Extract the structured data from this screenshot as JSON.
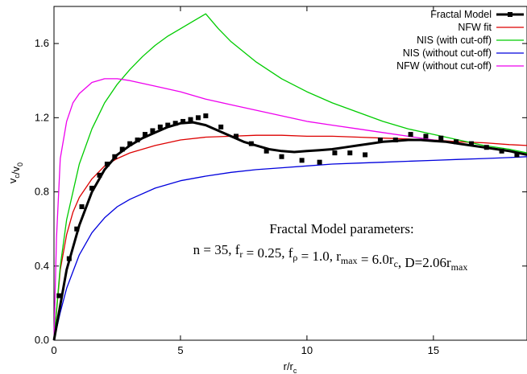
{
  "chart_data": {
    "type": "line",
    "xlabel": {
      "main": "r/r",
      "sub": "c"
    },
    "ylabel": {
      "parts": [
        [
          "v",
          ""
        ],
        [
          "c",
          "sub"
        ],
        [
          "/v",
          ""
        ],
        [
          "0",
          "sub"
        ]
      ]
    },
    "xlim": [
      0,
      18.7
    ],
    "ylim": [
      0,
      1.8
    ],
    "x_ticks": [
      0,
      5,
      10,
      15
    ],
    "x_tick_labels": [
      "0",
      "5",
      "10",
      "15"
    ],
    "y_ticks": [
      0,
      0.4,
      0.8,
      1.2,
      1.6
    ],
    "y_tick_labels": [
      "0.0",
      "0.4",
      "0.8",
      "1.2",
      "1.6"
    ],
    "grid": false,
    "legend_position": "top-right",
    "series": [
      {
        "name": "Fractal Model",
        "color": "#000000",
        "style": "line-with-square-markers",
        "x": [
          0,
          0.5,
          1,
          1.5,
          2,
          2.5,
          3,
          3.5,
          4,
          4.5,
          5,
          5.5,
          6,
          6.5,
          7,
          7.5,
          8,
          8.5,
          9,
          9.5,
          10,
          10.5,
          11,
          11.5,
          12,
          12.5,
          13,
          13.5,
          14,
          14.5,
          15,
          15.5,
          16,
          16.5,
          17,
          17.5,
          18,
          18.7
        ],
        "y": [
          0,
          0.38,
          0.62,
          0.8,
          0.92,
          1.0,
          1.05,
          1.09,
          1.12,
          1.15,
          1.17,
          1.175,
          1.16,
          1.13,
          1.1,
          1.07,
          1.05,
          1.03,
          1.02,
          1.015,
          1.02,
          1.025,
          1.03,
          1.04,
          1.05,
          1.06,
          1.07,
          1.075,
          1.08,
          1.08,
          1.075,
          1.07,
          1.06,
          1.05,
          1.04,
          1.03,
          1.02,
          1.0
        ]
      },
      {
        "name": "NFW fit",
        "color": "#dd0000",
        "x": [
          0,
          0.25,
          0.5,
          0.75,
          1,
          1.5,
          2,
          2.5,
          3,
          4,
          5,
          6,
          7,
          8,
          9,
          10,
          11,
          12,
          13,
          14,
          15,
          16,
          17,
          18,
          18.7
        ],
        "y": [
          0,
          0.38,
          0.57,
          0.69,
          0.77,
          0.87,
          0.94,
          0.98,
          1.01,
          1.05,
          1.08,
          1.095,
          1.1,
          1.105,
          1.105,
          1.1,
          1.1,
          1.095,
          1.09,
          1.085,
          1.08,
          1.07,
          1.065,
          1.055,
          1.05
        ]
      },
      {
        "name": "NIS (with cut-off)",
        "color": "#00cc00",
        "x": [
          0,
          0.25,
          0.5,
          1,
          1.5,
          2,
          2.5,
          3,
          3.5,
          4,
          4.5,
          5,
          5.5,
          6,
          6.5,
          7,
          8,
          9,
          10,
          11,
          12,
          13,
          14,
          15,
          16,
          17,
          18,
          18.7
        ],
        "y": [
          0,
          0.4,
          0.65,
          0.95,
          1.14,
          1.28,
          1.38,
          1.46,
          1.53,
          1.59,
          1.64,
          1.68,
          1.72,
          1.76,
          1.68,
          1.61,
          1.5,
          1.41,
          1.34,
          1.28,
          1.23,
          1.18,
          1.14,
          1.11,
          1.08,
          1.05,
          1.03,
          1.01
        ]
      },
      {
        "name": "NIS (without cut-off)",
        "color": "#0000dd",
        "x": [
          0,
          0.25,
          0.5,
          1,
          1.5,
          2,
          2.5,
          3,
          4,
          5,
          6,
          7,
          8,
          9,
          10,
          11,
          12,
          13,
          14,
          15,
          16,
          17,
          18,
          18.7
        ],
        "y": [
          0,
          0.15,
          0.28,
          0.46,
          0.58,
          0.66,
          0.72,
          0.76,
          0.82,
          0.86,
          0.885,
          0.905,
          0.92,
          0.93,
          0.94,
          0.95,
          0.955,
          0.96,
          0.965,
          0.97,
          0.975,
          0.98,
          0.985,
          0.99
        ]
      },
      {
        "name": "NFW (without cut-off)",
        "color": "#ee00ee",
        "x": [
          0,
          0.1,
          0.25,
          0.5,
          0.75,
          1,
          1.5,
          2,
          2.5,
          3,
          4,
          5,
          6,
          7,
          8,
          9,
          10,
          11,
          12,
          13,
          14,
          15,
          16,
          17,
          18,
          18.7
        ],
        "y": [
          0,
          0.55,
          0.98,
          1.18,
          1.28,
          1.33,
          1.39,
          1.41,
          1.41,
          1.4,
          1.37,
          1.34,
          1.3,
          1.27,
          1.24,
          1.21,
          1.18,
          1.16,
          1.14,
          1.12,
          1.1,
          1.08,
          1.06,
          1.04,
          1.02,
          1.0
        ]
      },
      {
        "name": "",
        "type": "scatter",
        "color": "#000000",
        "marker": "square",
        "x": [
          0.2,
          0.6,
          0.9,
          1.1,
          1.5,
          1.8,
          2.1,
          2.4,
          2.7,
          3.0,
          3.3,
          3.6,
          3.9,
          4.2,
          4.5,
          4.8,
          5.1,
          5.4,
          5.7,
          6.0,
          6.6,
          7.2,
          7.8,
          8.4,
          9.0,
          9.8,
          10.5,
          11.1,
          11.7,
          12.3,
          12.9,
          13.5,
          14.1,
          14.7,
          15.3,
          15.9,
          16.5,
          17.1,
          17.7,
          18.3
        ],
        "y": [
          0.24,
          0.44,
          0.6,
          0.72,
          0.82,
          0.89,
          0.95,
          0.99,
          1.03,
          1.06,
          1.08,
          1.11,
          1.13,
          1.15,
          1.16,
          1.17,
          1.18,
          1.19,
          1.2,
          1.21,
          1.15,
          1.1,
          1.06,
          1.02,
          0.99,
          0.97,
          0.96,
          1.01,
          1.01,
          1.0,
          1.08,
          1.08,
          1.11,
          1.1,
          1.09,
          1.07,
          1.06,
          1.04,
          1.02,
          1.0
        ]
      }
    ],
    "annotation": {
      "title": "Fractal Model parameters:",
      "parts": [
        [
          "n = 35, f",
          ""
        ],
        [
          "r",
          "sub"
        ],
        [
          " = 0.25, f",
          ""
        ],
        [
          "ρ",
          "sub"
        ],
        [
          " = 1.0, r",
          ""
        ],
        [
          "max",
          "sub"
        ],
        [
          " = 6.0r",
          ""
        ],
        [
          "c",
          "sub"
        ],
        [
          ", D=2.06r",
          ""
        ],
        [
          "max",
          "sub"
        ]
      ]
    }
  }
}
